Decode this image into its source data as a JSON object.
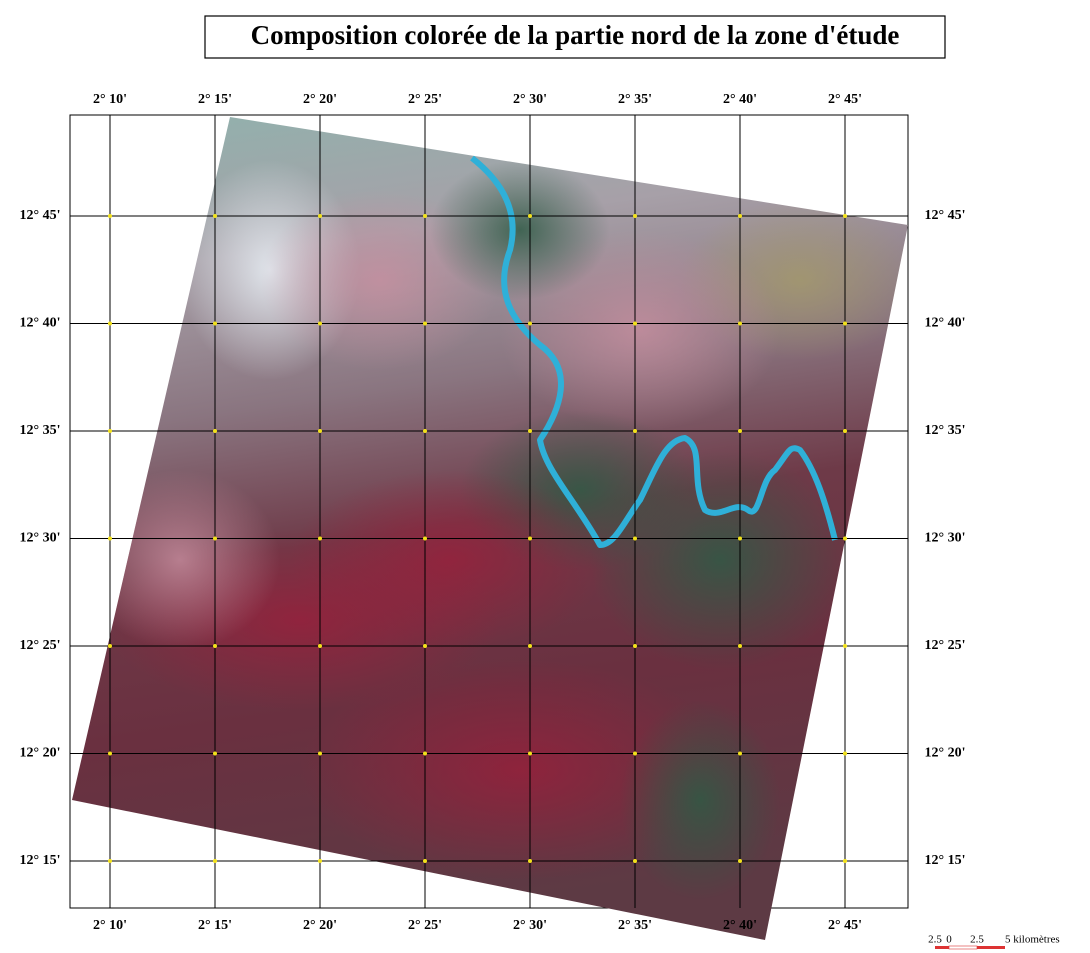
{
  "title": "Composition colorée de la partie nord de la zone d'étude",
  "longitude_labels": [
    "2° 10'",
    "2° 15'",
    "2° 20'",
    "2° 25'",
    "2° 30'",
    "2° 35'",
    "2° 40'",
    "2° 45'"
  ],
  "latitude_labels": [
    "12° 45'",
    "12° 40'",
    "12° 35'",
    "12° 30'",
    "12° 25'",
    "12° 20'",
    "12° 15'"
  ],
  "scale_bar": {
    "labels": [
      "2.5",
      "0",
      "2.5",
      "5 kilomètres"
    ]
  }
}
